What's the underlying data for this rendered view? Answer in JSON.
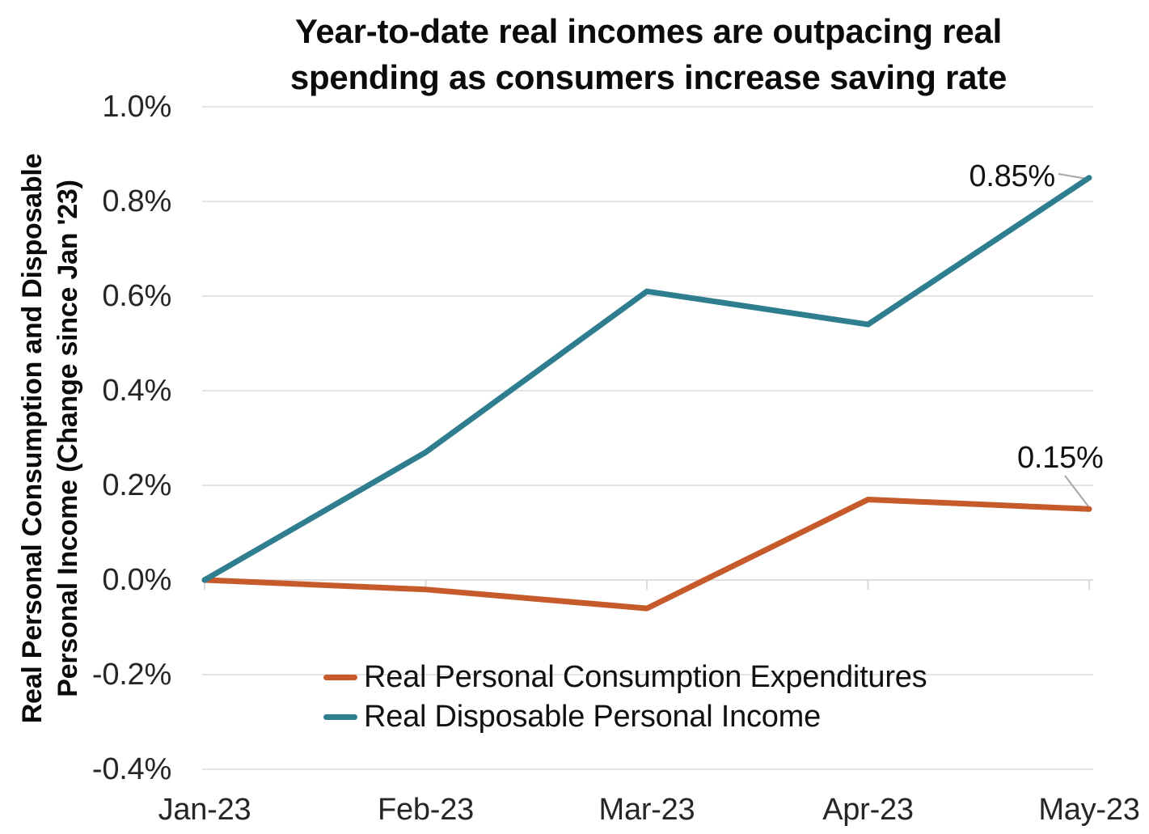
{
  "title": {
    "line1": "Year-to-date real incomes are outpacing real",
    "line2": "spending as consumers increase saving rate"
  },
  "y_axis_title": {
    "line1": "Real Personal Consumption and Disposable",
    "line2": "Personal Income (Change since Jan '23)"
  },
  "colors": {
    "pce_orange": "#c75a2b",
    "rdpi_teal": "#2e7e90",
    "gridline": "#e4e4e4",
    "leader_gray": "#a6a6a6",
    "text": "#111111"
  },
  "chart_data": {
    "type": "line",
    "title": "Year-to-date real incomes are outpacing real spending as consumers increase saving rate",
    "xlabel": "",
    "ylabel": "Real Personal Consumption and Disposable Personal Income (Change since Jan '23)",
    "categories": [
      "Jan-23",
      "Feb-23",
      "Mar-23",
      "Apr-23",
      "May-23"
    ],
    "series": [
      {
        "name": "Real Personal Consumption Expenditures",
        "color": "#c75a2b",
        "values": [
          0.0,
          -0.02,
          -0.06,
          0.17,
          0.15
        ]
      },
      {
        "name": "Real Disposable Personal Income",
        "color": "#2e7e90",
        "values": [
          0.0,
          0.27,
          0.61,
          0.54,
          0.85
        ]
      }
    ],
    "units": "percent change since Jan '23",
    "ylim": [
      -0.4,
      1.0
    ],
    "yticks": [
      1.0,
      0.8,
      0.6,
      0.4,
      0.2,
      0.0,
      -0.2,
      -0.4
    ],
    "ytick_labels": [
      "1.0%",
      "0.8%",
      "0.6%",
      "0.4%",
      "0.2%",
      "0.0%",
      "-0.2%",
      "-0.4%"
    ],
    "grid": "horizontal",
    "legend_position": "inside-bottom-center",
    "annotations": [
      {
        "text": "0.85%",
        "series": "Real Disposable Personal Income",
        "category": "May-23",
        "value": 0.85
      },
      {
        "text": "0.15%",
        "series": "Real Personal Consumption Expenditures",
        "category": "May-23",
        "value": 0.15
      }
    ]
  }
}
